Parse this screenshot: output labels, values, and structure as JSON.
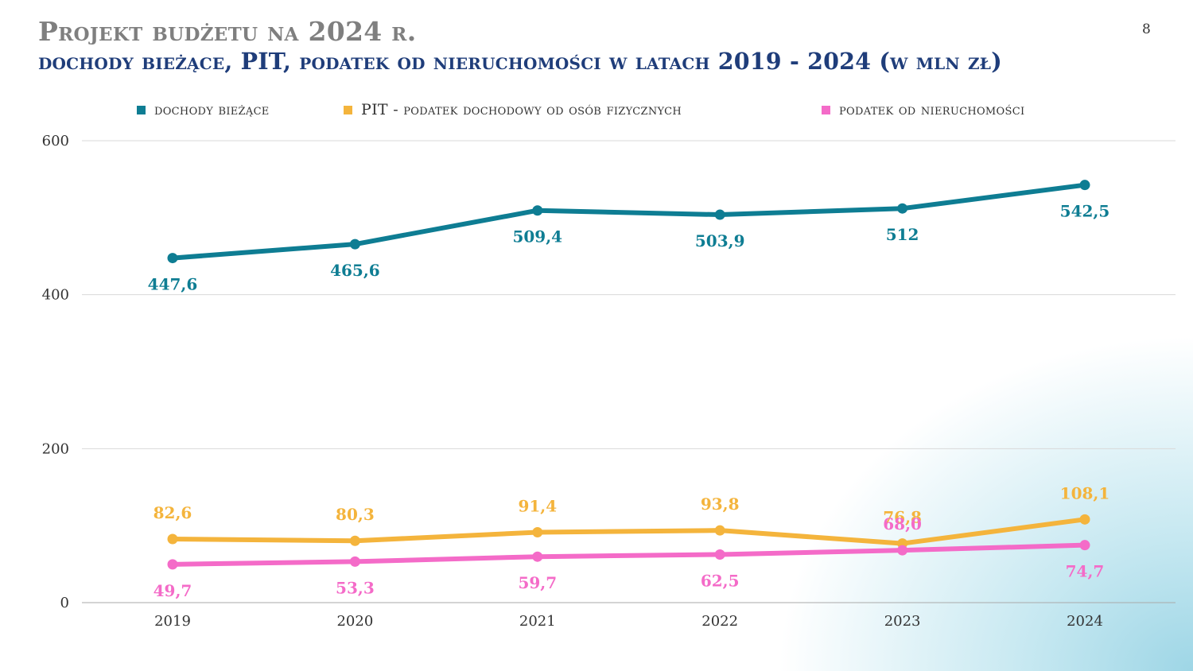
{
  "header": {
    "title": "Projekt budżetu na 2024 r.",
    "subtitle": "dochody bieżące, PIT, podatek od nieruchomości w latach 2019 - 2024 (w mln zł)",
    "page_number": "8"
  },
  "chart_data": {
    "type": "line",
    "categories": [
      "2019",
      "2020",
      "2021",
      "2022",
      "2023",
      "2024"
    ],
    "ylim": [
      0,
      600
    ],
    "y_ticks": [
      0,
      200,
      400,
      600
    ],
    "grid": true,
    "legend_position": "top",
    "series": [
      {
        "name": "dochody bieżące",
        "color": "#0e7d93",
        "values": [
          447.6,
          465.6,
          509.4,
          503.9,
          512,
          542.5
        ],
        "labels": [
          "447,6",
          "465,6",
          "509,4",
          "503,9",
          "512",
          "542,5"
        ]
      },
      {
        "name": "PIT -  podatek dochodowy od osób fizycznych",
        "color": "#f4b43c",
        "values": [
          82.6,
          80.3,
          91.4,
          93.8,
          76.8,
          108.1
        ],
        "labels": [
          "82,6",
          "80,3",
          "91,4",
          "93,8",
          "76,8",
          "108,1"
        ]
      },
      {
        "name": "podatek od nieruchomości",
        "color": "#f46bc8",
        "values": [
          49.7,
          53.3,
          59.7,
          62.5,
          68.0,
          74.7
        ],
        "labels": [
          "49,7",
          "53,3",
          "59,7",
          "62,5",
          "68,0",
          "74,7"
        ]
      }
    ]
  }
}
